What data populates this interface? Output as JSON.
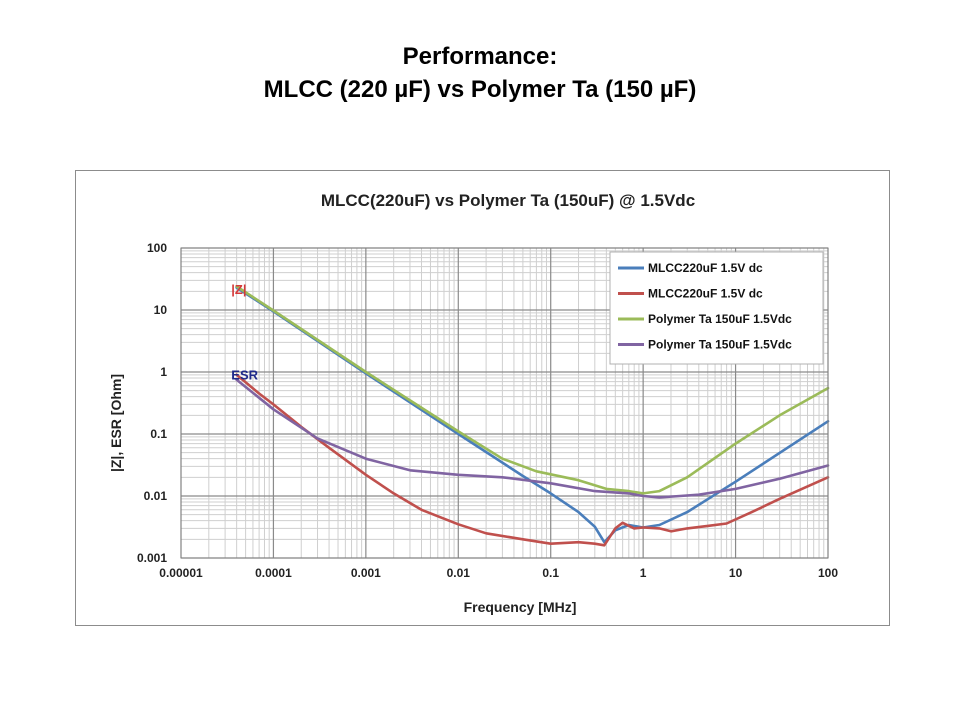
{
  "slide": {
    "title_line1": "Performance:",
    "title_line2": "MLCC (220 µF) vs Polymer Ta (150 µF)"
  },
  "chart_data": {
    "type": "line",
    "title": "MLCC(220uF) vs Polymer Ta (150uF) @ 1.5Vdc",
    "xlabel": "Frequency [MHz]",
    "ylabel": "|Z|, ESR [Ohm]",
    "x_scale": "log",
    "y_scale": "log",
    "xlim": [
      1e-05,
      100
    ],
    "ylim": [
      0.001,
      100
    ],
    "x_ticks": [
      1e-05,
      0.0001,
      0.001,
      0.01,
      0.1,
      1,
      10,
      100
    ],
    "x_tick_labels": [
      "0.00001",
      "0.0001",
      "0.001",
      "0.01",
      "0.1",
      "1",
      "10",
      "100"
    ],
    "y_ticks": [
      0.001,
      0.01,
      0.1,
      1,
      10,
      100
    ],
    "y_tick_labels": [
      "0.001",
      "0.01",
      "0.1",
      "1",
      "10",
      "100"
    ],
    "grid": true,
    "legend_position": "top-right",
    "annotations": [
      {
        "text": "|Z|",
        "x": 3.5e-05,
        "y": 18,
        "color": "#d43a3a"
      },
      {
        "text": "ESR",
        "x": 3.5e-05,
        "y": 0.75,
        "color": "#1f2a8a"
      }
    ],
    "series": [
      {
        "name": "MLCC220uF 1.5V dc",
        "color": "#4a7ebb",
        "x": [
          4e-05,
          0.0001,
          0.001,
          0.01,
          0.05,
          0.1,
          0.2,
          0.3,
          0.38,
          0.5,
          0.7,
          1.0,
          1.5,
          3,
          10,
          100
        ],
        "y": [
          23,
          9.5,
          0.95,
          0.1,
          0.021,
          0.011,
          0.0055,
          0.0032,
          0.0018,
          0.0028,
          0.0034,
          0.0031,
          0.0034,
          0.0055,
          0.017,
          0.16
        ]
      },
      {
        "name": "MLCC220uF 1.5V dc",
        "color": "#c0504d",
        "x": [
          4e-05,
          7e-05,
          0.0001,
          0.0002,
          0.0004,
          0.001,
          0.002,
          0.004,
          0.01,
          0.02,
          0.05,
          0.1,
          0.2,
          0.3,
          0.38,
          0.5,
          0.6,
          0.8,
          1.0,
          1.5,
          2,
          3,
          5,
          8,
          15,
          30,
          100
        ],
        "y": [
          0.9,
          0.45,
          0.3,
          0.13,
          0.06,
          0.022,
          0.011,
          0.006,
          0.0035,
          0.0025,
          0.002,
          0.0017,
          0.0018,
          0.0017,
          0.0016,
          0.003,
          0.0037,
          0.003,
          0.0031,
          0.003,
          0.0027,
          0.003,
          0.0033,
          0.0036,
          0.0055,
          0.009,
          0.02
        ]
      },
      {
        "name": "Polymer Ta 150uF 1.5Vdc",
        "color": "#9bbb59",
        "x": [
          4e-05,
          0.0001,
          0.001,
          0.01,
          0.03,
          0.07,
          0.2,
          0.4,
          0.7,
          1.0,
          1.5,
          3,
          10,
          30,
          100
        ],
        "y": [
          24,
          9.8,
          1.0,
          0.11,
          0.04,
          0.025,
          0.018,
          0.013,
          0.012,
          0.011,
          0.012,
          0.02,
          0.07,
          0.2,
          0.55
        ]
      },
      {
        "name": "Polymer Ta 150uF 1.5Vdc",
        "color": "#8064a2",
        "x": [
          4e-05,
          0.0001,
          0.0003,
          0.001,
          0.003,
          0.01,
          0.03,
          0.1,
          0.3,
          0.7,
          1.0,
          1.5,
          2.5,
          4,
          10,
          30,
          100
        ],
        "y": [
          0.75,
          0.25,
          0.085,
          0.04,
          0.026,
          0.022,
          0.02,
          0.016,
          0.012,
          0.011,
          0.01,
          0.0095,
          0.01,
          0.0105,
          0.013,
          0.019,
          0.031
        ]
      }
    ]
  }
}
